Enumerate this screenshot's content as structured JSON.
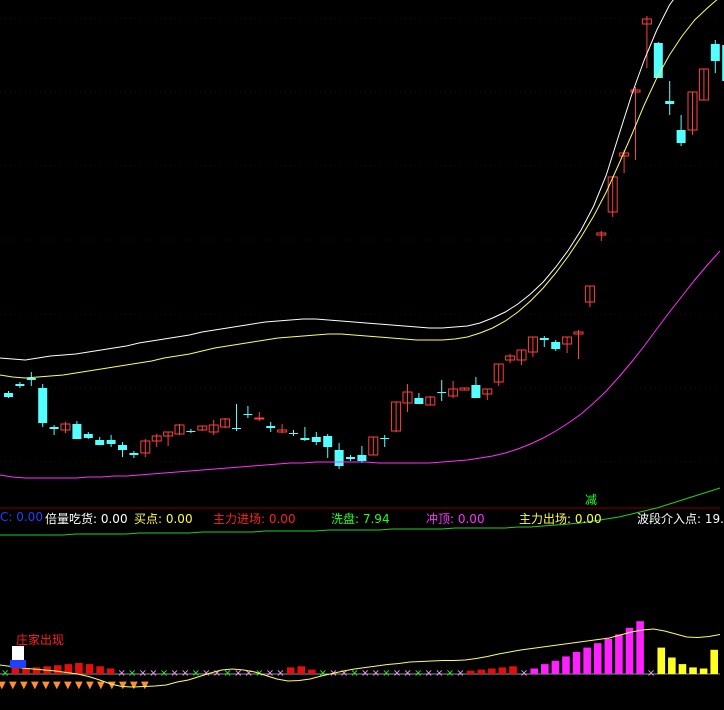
{
  "colors": {
    "background": "#000000",
    "grid": "#3a0000",
    "candle_up": "#ff4040",
    "candle_down": "#54ffff",
    "ma_white": "#ffffff",
    "ma_yellow": "#ffff60",
    "ma_magenta": "#ff30ff",
    "ma_green": "#20d020"
  },
  "sub_marker": "减",
  "indicator_bar": [
    {
      "label": "C: 0.00",
      "color": "#2040ff"
    },
    {
      "label": "倍量吃货: 0.00",
      "color": "#ffffff"
    },
    {
      "label": "买点: 0.00",
      "color": "#ffff40"
    },
    {
      "label": "主力进场: 0.00",
      "color": "#ff2020"
    },
    {
      "label": "洗盘: 7.94",
      "color": "#20ff20"
    },
    {
      "label": "冲顶: 0.00",
      "color": "#ff30ff"
    },
    {
      "label": "主力出场: 0.00",
      "color": "#ffff40"
    },
    {
      "label": "波段介入点: 19.",
      "color": "#ffffff"
    }
  ],
  "lower_label": "庄家出现",
  "chart_data": {
    "type": "candlestick",
    "title": "",
    "ohlc": [
      [
        393,
        391,
        398,
        397
      ],
      [
        384,
        382,
        388,
        386
      ],
      [
        378,
        372,
        386,
        380
      ],
      [
        388,
        384,
        427,
        423
      ],
      [
        427,
        425,
        435,
        429
      ],
      [
        430,
        422,
        433,
        424
      ],
      [
        424,
        421,
        439,
        439
      ],
      [
        434,
        432,
        439,
        438
      ],
      [
        440,
        437,
        445,
        445
      ],
      [
        440,
        435,
        447,
        444
      ],
      [
        445,
        442,
        457,
        450
      ],
      [
        453,
        451,
        458,
        455
      ],
      [
        453,
        439,
        457,
        441
      ],
      [
        441,
        434,
        447,
        436
      ],
      [
        436,
        432,
        446,
        432
      ],
      [
        434,
        424,
        435,
        425
      ],
      [
        431,
        429,
        433,
        431
      ],
      [
        430,
        426,
        431,
        426
      ],
      [
        432,
        420,
        435,
        425
      ],
      [
        427,
        418,
        428,
        419
      ],
      [
        428,
        404,
        431,
        428
      ],
      [
        414,
        406,
        418,
        414
      ],
      [
        419,
        412,
        421,
        418
      ],
      [
        426,
        422,
        432,
        428
      ],
      [
        432,
        424,
        433,
        430
      ],
      [
        433,
        430,
        436,
        434
      ],
      [
        438,
        427,
        441,
        440
      ],
      [
        437,
        432,
        445,
        442
      ],
      [
        436,
        434,
        458,
        447
      ],
      [
        450,
        443,
        469,
        466
      ],
      [
        457,
        455,
        461,
        459
      ],
      [
        455,
        446,
        463,
        461
      ],
      [
        455,
        438,
        455,
        437
      ],
      [
        438,
        435,
        447,
        438
      ],
      [
        431,
        402,
        432,
        402
      ],
      [
        403,
        384,
        412,
        392
      ],
      [
        398,
        393,
        404,
        404
      ],
      [
        405,
        396,
        405,
        397
      ],
      [
        392,
        380,
        401,
        392
      ],
      [
        396,
        381,
        398,
        389
      ],
      [
        390,
        388,
        390,
        388
      ],
      [
        385,
        377,
        394,
        398
      ],
      [
        394,
        390,
        400,
        389
      ],
      [
        382,
        366,
        386,
        364
      ],
      [
        360,
        354,
        363,
        356
      ],
      [
        360,
        352,
        365,
        350
      ],
      [
        352,
        337,
        357,
        337
      ],
      [
        338,
        336,
        347,
        340
      ],
      [
        342,
        340,
        351,
        349
      ],
      [
        344,
        337,
        353,
        337
      ],
      [
        334,
        330,
        359,
        332
      ],
      [
        302,
        287,
        307,
        286
      ],
      [
        235,
        231,
        241,
        233
      ],
      [
        212,
        176,
        217,
        177
      ],
      [
        156,
        150,
        173,
        153
      ],
      [
        92,
        87,
        160,
        90
      ],
      [
        24,
        16,
        68,
        19
      ],
      [
        43,
        42,
        76,
        78
      ],
      [
        101,
        81,
        115,
        104
      ],
      [
        130,
        115,
        146,
        143
      ],
      [
        130,
        98,
        135,
        92
      ],
      [
        100,
        73,
        100,
        69
      ],
      [
        44,
        40,
        73,
        61
      ],
      [
        45,
        30,
        90,
        81
      ]
    ],
    "ma_white": [
      478,
      479,
      480,
      478,
      476,
      475,
      474,
      472,
      470,
      468,
      466,
      463,
      461,
      459,
      457,
      455,
      452,
      450,
      448,
      446,
      444,
      442,
      441,
      440,
      439,
      439,
      440,
      441,
      442,
      443,
      444,
      445,
      446,
      447,
      448,
      448,
      447,
      446,
      443,
      438,
      432,
      424,
      414,
      402,
      387,
      370,
      350,
      326,
      295,
      255,
      215,
      180,
      150,
      125,
      108,
      98,
      92,
      90
    ],
    "ma_yellow": [
      495,
      497,
      498,
      497,
      496,
      495,
      493,
      491,
      489,
      487,
      485,
      483,
      481,
      478,
      476,
      474,
      471,
      468,
      466,
      464,
      462,
      460,
      458,
      457,
      456,
      455,
      454,
      454,
      455,
      456,
      457,
      458,
      459,
      460,
      460,
      460,
      459,
      457,
      453,
      448,
      441,
      432,
      421,
      408,
      393,
      376,
      357,
      336,
      312,
      284,
      255,
      225,
      198,
      175,
      156,
      140,
      128,
      117
    ],
    "ma_magenta": [
      595,
      597,
      598,
      598,
      598,
      598,
      598,
      597,
      597,
      596,
      596,
      595,
      594,
      593,
      592,
      591,
      590,
      589,
      588,
      587,
      586,
      585,
      584,
      583,
      583,
      582,
      582,
      582,
      582,
      582,
      583,
      583,
      583,
      583,
      583,
      582,
      581,
      580,
      578,
      576,
      573,
      569,
      564,
      558,
      551,
      543,
      534,
      523,
      511,
      497,
      482,
      466,
      449,
      432,
      416,
      400,
      385,
      371
    ],
    "ma_green": [
      655,
      655,
      655,
      655,
      655,
      655,
      654,
      654,
      654,
      654,
      654,
      653,
      653,
      653,
      653,
      653,
      652,
      652,
      652,
      652,
      652,
      651,
      651,
      651,
      651,
      651,
      650,
      650,
      650,
      650,
      650,
      649,
      649,
      649,
      649,
      649,
      648,
      648,
      648,
      648,
      648,
      647,
      647,
      646,
      645,
      644,
      643,
      641,
      639,
      637,
      634,
      631,
      628,
      624,
      620,
      616,
      612,
      608
    ],
    "lower_histogram": [
      -0.1,
      0.6,
      0.5,
      0.6,
      0.7,
      0.8,
      0.9,
      1.0,
      0.9,
      0.7,
      0.5,
      0,
      0,
      0,
      0,
      0,
      0,
      0,
      0,
      0,
      0,
      0,
      0,
      0,
      0,
      0,
      0,
      0.6,
      0.7,
      0.4,
      0,
      0,
      0,
      0,
      0,
      0,
      0,
      0,
      0,
      0,
      0,
      0,
      0,
      0,
      0.3,
      0.4,
      0.5,
      0.6,
      0.7,
      -0.2,
      0.5,
      0.9,
      1.2,
      1.6,
      2.0,
      2.4,
      2.8,
      3.2,
      3.6,
      4.2,
      4.8,
      -1,
      2.4,
      1.5,
      0.9,
      0.6,
      0.5,
      2.2
    ],
    "lower_line": [
      1.8,
      1.5,
      1.2,
      1.0,
      0.8,
      0.6,
      0.3,
      0,
      -0.5,
      -1.2,
      -2.0,
      -2.5,
      -2.6,
      -2.5,
      -2.4,
      -2.2,
      -1.6,
      -1.2,
      -0.5,
      0.2,
      0.8,
      1.0,
      0.8,
      0.4,
      -0.3,
      -1.0,
      -1.4,
      -1.3,
      -1.0,
      -0.4,
      0.1,
      0.6,
      1.0,
      1.3,
      1.6,
      1.9,
      2.1,
      2.4,
      2.5,
      2.6,
      2.7,
      2.7,
      2.8,
      3.1,
      3.5,
      4.0,
      4.4,
      4.8,
      5.1,
      5.4,
      5.7,
      6.0,
      6.3,
      6.6,
      6.9,
      7.2,
      7.8,
      8.4,
      8.8,
      9.0,
      8.6,
      8.0,
      7.4,
      7.3,
      7.5,
      7.9
    ]
  }
}
